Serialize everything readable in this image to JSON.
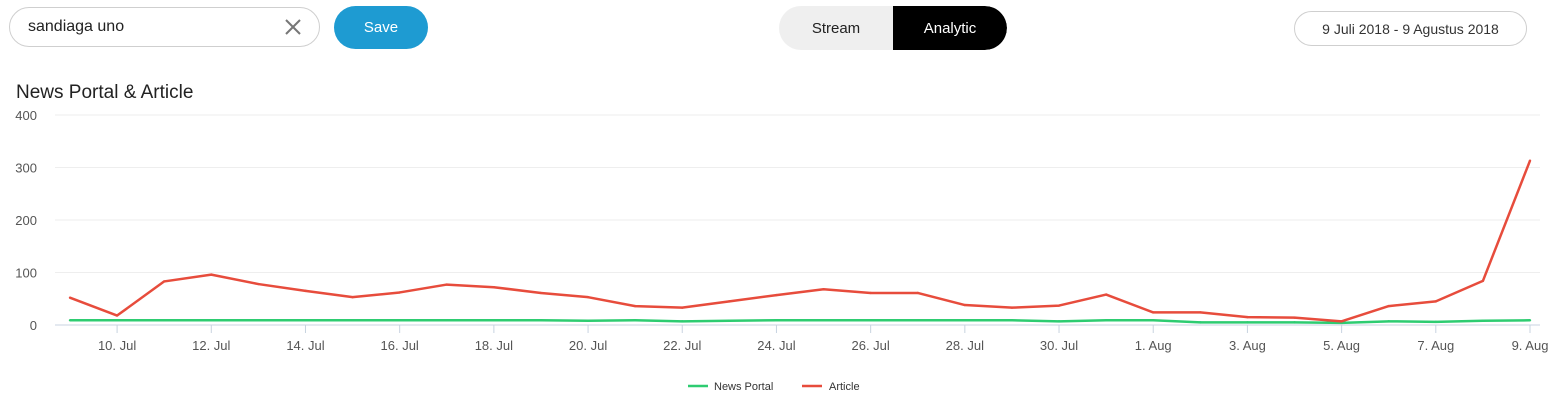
{
  "search": {
    "value": "sandiaga uno",
    "placeholder": ""
  },
  "toolbar": {
    "save_label": "Save"
  },
  "view_toggle": {
    "tabs": [
      {
        "label": "Stream",
        "active": false
      },
      {
        "label": "Analytic",
        "active": true
      }
    ]
  },
  "date_range": "9 Juli 2018 - 9 Agustus 2018",
  "colors": {
    "accent": "#1e9bd2",
    "news_portal": "#2ecc71",
    "article": "#e74c3c"
  },
  "chart_data": {
    "type": "line",
    "title": "News Portal & Article",
    "xlabel": "",
    "ylabel": "",
    "ylim": [
      0,
      400
    ],
    "yticks": [
      "0",
      "100",
      "200",
      "300",
      "400"
    ],
    "x": [
      "9. Jul",
      "10. Jul",
      "11. Jul",
      "12. Jul",
      "13. Jul",
      "14. Jul",
      "15. Jul",
      "16. Jul",
      "17. Jul",
      "18. Jul",
      "19. Jul",
      "20. Jul",
      "21. Jul",
      "22. Jul",
      "23. Jul",
      "24. Jul",
      "25. Jul",
      "26. Jul",
      "27. Jul",
      "28. Jul",
      "29. Jul",
      "30. Jul",
      "31. Jul",
      "1. Aug",
      "2. Aug",
      "3. Aug",
      "4. Aug",
      "5. Aug",
      "6. Aug",
      "7. Aug",
      "8. Aug",
      "9. Aug"
    ],
    "xtick_labels": [
      "10. Jul",
      "12. Jul",
      "14. Jul",
      "16. Jul",
      "18. Jul",
      "20. Jul",
      "22. Jul",
      "24. Jul",
      "26. Jul",
      "28. Jul",
      "30. Jul",
      "1. Aug",
      "3. Aug",
      "5. Aug",
      "7. Aug",
      "9. Aug"
    ],
    "series": [
      {
        "name": "News Portal",
        "color": "#2ecc71",
        "values": [
          9,
          9,
          9,
          9,
          9,
          9,
          9,
          9,
          9,
          9,
          9,
          8,
          9,
          7,
          8,
          9,
          9,
          9,
          9,
          9,
          9,
          7,
          9,
          9,
          5,
          5,
          5,
          4,
          7,
          6,
          8,
          9
        ]
      },
      {
        "name": "Article",
        "color": "#e74c3c",
        "values": [
          52,
          18,
          83,
          96,
          78,
          65,
          53,
          62,
          77,
          72,
          61,
          53,
          36,
          33,
          45,
          57,
          68,
          61,
          61,
          38,
          33,
          37,
          58,
          24,
          24,
          15,
          14,
          7,
          36,
          45,
          84,
          313
        ]
      }
    ],
    "grid": true,
    "legend": "bottom-center"
  }
}
